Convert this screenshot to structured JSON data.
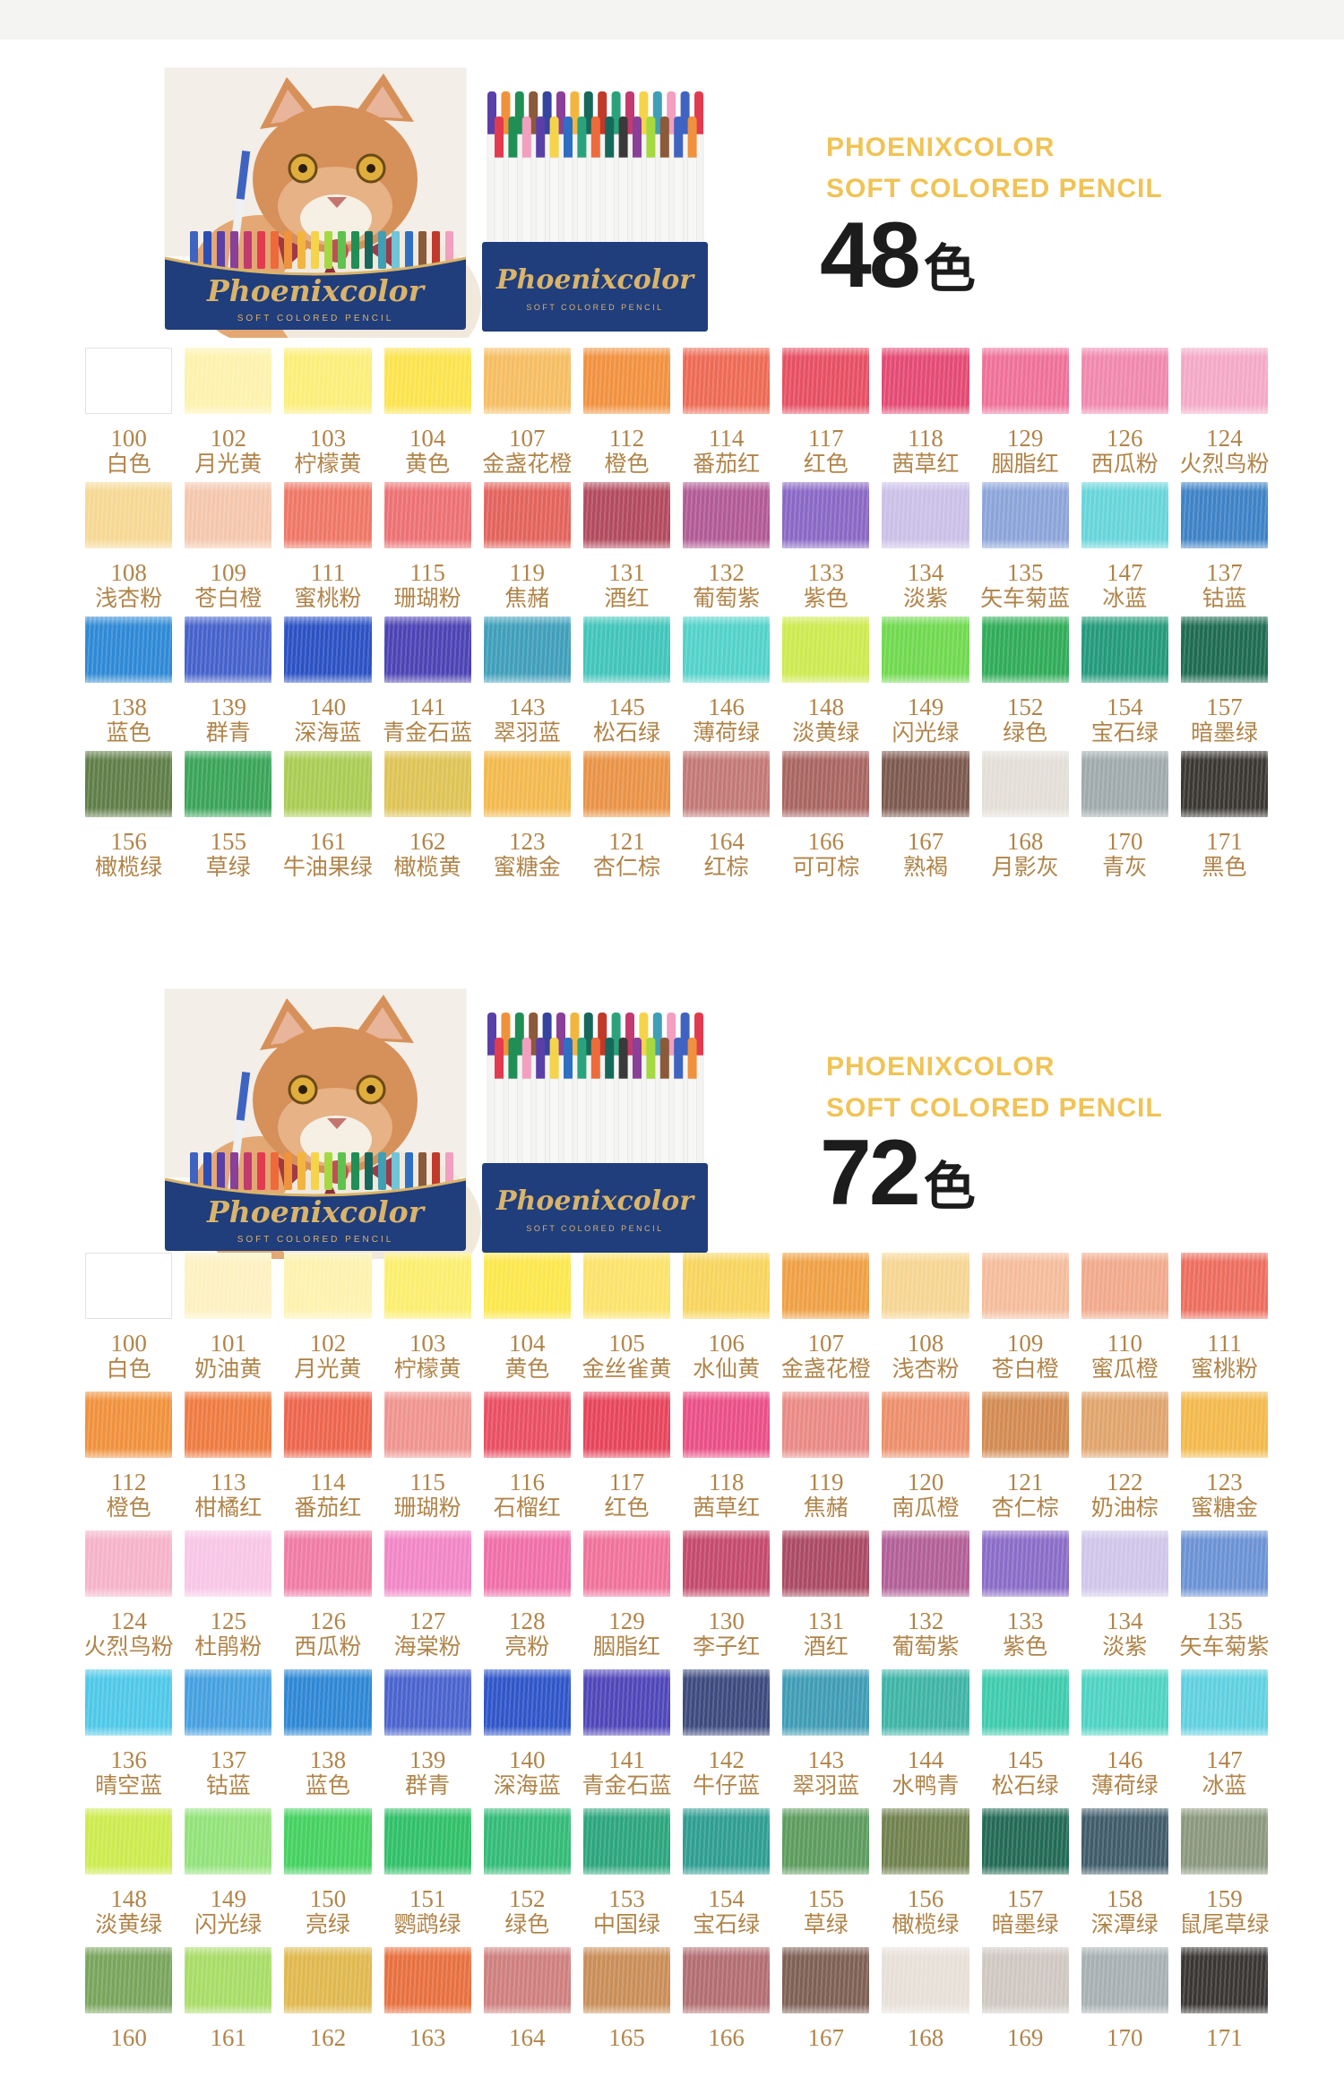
{
  "accent_colors": {
    "brand_yellow": "#f0c355",
    "label_brown": "#b08449",
    "box_navy": "#203d7c",
    "box_gold": "#d9b469"
  },
  "product_art": {
    "brand_script": "Phoenixcolor",
    "box_subtitle": "SOFT COLORED PENCIL",
    "navy": "#203d7c",
    "gold": "#d9b469",
    "cat_fur": "#d6905a",
    "cat_fur_light": "#e3a873",
    "bow_red": "#a03a48",
    "pencil_tips": [
      "#3f63c0",
      "#2b4db4",
      "#5a3fa8",
      "#8a3f98",
      "#c23b6e",
      "#e23b50",
      "#ee6a3a",
      "#f0913b",
      "#f2b63f",
      "#f5d44a",
      "#a5d93f",
      "#5fc24e",
      "#1f8f56",
      "#16695a",
      "#3f9fb5",
      "#6fc6d8",
      "#2e6fc4",
      "#8a5a3a",
      "#c0392b",
      "#f29fc0",
      "#3a3a3a",
      "#d84a7a",
      "#35449e",
      "#2aa37d"
    ]
  },
  "sections": [
    {
      "id": "sec48",
      "brand_line1": "PHOENIXCOLOR",
      "brand_line2": "SOFT COLORED PENCIL",
      "count_number": "48",
      "count_suffix": "色",
      "rows": [
        [
          {
            "num": "100",
            "name": "白色",
            "color": "#ffffff",
            "light": true
          },
          {
            "num": "102",
            "name": "月光黄",
            "color": "#fdf2ad"
          },
          {
            "num": "103",
            "name": "柠檬黄",
            "color": "#fbee79"
          },
          {
            "num": "104",
            "name": "黄色",
            "color": "#fbe34d"
          },
          {
            "num": "107",
            "name": "金盏花橙",
            "color": "#f6bd62"
          },
          {
            "num": "112",
            "name": "橙色",
            "color": "#f1913f"
          },
          {
            "num": "114",
            "name": "番茄红",
            "color": "#ed6a55"
          },
          {
            "num": "117",
            "name": "红色",
            "color": "#e64f63"
          },
          {
            "num": "118",
            "name": "茜草红",
            "color": "#e34a73"
          },
          {
            "num": "129",
            "name": "胭脂红",
            "color": "#ee7099"
          },
          {
            "num": "126",
            "name": "西瓜粉",
            "color": "#f088ae"
          },
          {
            "num": "124",
            "name": "火烈鸟粉",
            "color": "#f4a9c6"
          }
        ],
        [
          {
            "num": "108",
            "name": "浅杏粉",
            "color": "#f6d894"
          },
          {
            "num": "109",
            "name": "苍白橙",
            "color": "#f4c7ad"
          },
          {
            "num": "111",
            "name": "蜜桃粉",
            "color": "#ee7766"
          },
          {
            "num": "115",
            "name": "珊瑚粉",
            "color": "#ec7173"
          },
          {
            "num": "119",
            "name": "焦赭",
            "color": "#e2635c"
          },
          {
            "num": "131",
            "name": "酒红",
            "color": "#b24a5e"
          },
          {
            "num": "132",
            "name": "葡萄紫",
            "color": "#b15a95"
          },
          {
            "num": "133",
            "name": "紫色",
            "color": "#8968c5"
          },
          {
            "num": "134",
            "name": "淡紫",
            "color": "#cbc0e7"
          },
          {
            "num": "135",
            "name": "矢车菊蓝",
            "color": "#8ba4d9"
          },
          {
            "num": "147",
            "name": "冰蓝",
            "color": "#66d5da"
          },
          {
            "num": "137",
            "name": "钴蓝",
            "color": "#3e82c6"
          }
        ],
        [
          {
            "num": "138",
            "name": "蓝色",
            "color": "#2e89d5"
          },
          {
            "num": "139",
            "name": "群青",
            "color": "#4562cb"
          },
          {
            "num": "140",
            "name": "深海蓝",
            "color": "#2b51c3"
          },
          {
            "num": "141",
            "name": "青金石蓝",
            "color": "#4c43b4"
          },
          {
            "num": "143",
            "name": "翠羽蓝",
            "color": "#3f9fba"
          },
          {
            "num": "145",
            "name": "松石绿",
            "color": "#41c5ba"
          },
          {
            "num": "146",
            "name": "薄荷绿",
            "color": "#52d2c9"
          },
          {
            "num": "148",
            "name": "淡黄绿",
            "color": "#cdea4f"
          },
          {
            "num": "149",
            "name": "闪光绿",
            "color": "#70d94f"
          },
          {
            "num": "152",
            "name": "绿色",
            "color": "#30ac58"
          },
          {
            "num": "154",
            "name": "宝石绿",
            "color": "#239a7b"
          },
          {
            "num": "157",
            "name": "暗墨绿",
            "color": "#1e6b51"
          }
        ],
        [
          {
            "num": "156",
            "name": "橄榄绿",
            "color": "#5f7e48"
          },
          {
            "num": "155",
            "name": "草绿",
            "color": "#3aa458"
          },
          {
            "num": "161",
            "name": "牛油果绿",
            "color": "#a9cc53"
          },
          {
            "num": "162",
            "name": "橄榄黄",
            "color": "#dec355"
          },
          {
            "num": "123",
            "name": "蜜糖金",
            "color": "#f3b94e"
          },
          {
            "num": "121",
            "name": "杏仁棕",
            "color": "#e99346"
          },
          {
            "num": "164",
            "name": "红棕",
            "color": "#c27976"
          },
          {
            "num": "166",
            "name": "可可棕",
            "color": "#a96561"
          },
          {
            "num": "167",
            "name": "熟褐",
            "color": "#7c594e"
          },
          {
            "num": "168",
            "name": "月影灰",
            "color": "#e3ded7"
          },
          {
            "num": "170",
            "name": "青灰",
            "color": "#a0aaac"
          },
          {
            "num": "171",
            "name": "黑色",
            "color": "#3a3733"
          }
        ]
      ]
    },
    {
      "id": "sec72",
      "brand_line1": "PHOENIXCOLOR",
      "brand_line2": "SOFT COLORED PENCIL",
      "count_number": "72",
      "count_suffix": "色",
      "rows": [
        [
          {
            "num": "100",
            "name": "白色",
            "color": "#ffffff",
            "light": true
          },
          {
            "num": "101",
            "name": "奶油黄",
            "color": "#fdf1c1"
          },
          {
            "num": "102",
            "name": "月光黄",
            "color": "#fdf2ae"
          },
          {
            "num": "103",
            "name": "柠檬黄",
            "color": "#fbee6e"
          },
          {
            "num": "104",
            "name": "黄色",
            "color": "#fce74b"
          },
          {
            "num": "105",
            "name": "金丝雀黄",
            "color": "#fbe26a"
          },
          {
            "num": "106",
            "name": "水仙黄",
            "color": "#f8d45d"
          },
          {
            "num": "107",
            "name": "金盏花橙",
            "color": "#efa044"
          },
          {
            "num": "108",
            "name": "浅杏粉",
            "color": "#f6d593"
          },
          {
            "num": "109",
            "name": "苍白橙",
            "color": "#f4bc9c"
          },
          {
            "num": "110",
            "name": "蜜瓜橙",
            "color": "#f1a98c"
          },
          {
            "num": "111",
            "name": "蜜桃粉",
            "color": "#ec6d5e"
          }
        ],
        [
          {
            "num": "112",
            "name": "橙色",
            "color": "#f0913c"
          },
          {
            "num": "113",
            "name": "柑橘红",
            "color": "#ee7b41"
          },
          {
            "num": "114",
            "name": "番茄红",
            "color": "#ec654d"
          },
          {
            "num": "115",
            "name": "珊瑚粉",
            "color": "#ef948f"
          },
          {
            "num": "116",
            "name": "石榴红",
            "color": "#e84f63"
          },
          {
            "num": "117",
            "name": "红色",
            "color": "#e6455c"
          },
          {
            "num": "118",
            "name": "茜草红",
            "color": "#e94f86"
          },
          {
            "num": "119",
            "name": "焦赭",
            "color": "#e98a84"
          },
          {
            "num": "120",
            "name": "南瓜橙",
            "color": "#ec8f6a"
          },
          {
            "num": "121",
            "name": "杏仁棕",
            "color": "#d28b51"
          },
          {
            "num": "122",
            "name": "奶油棕",
            "color": "#e0a46d"
          },
          {
            "num": "123",
            "name": "蜜糖金",
            "color": "#f3b94b"
          }
        ],
        [
          {
            "num": "124",
            "name": "火烈鸟粉",
            "color": "#f5b3c9"
          },
          {
            "num": "125",
            "name": "杜鹃粉",
            "color": "#f8c6e6"
          },
          {
            "num": "126",
            "name": "西瓜粉",
            "color": "#ef7ba5"
          },
          {
            "num": "127",
            "name": "海棠粉",
            "color": "#f186c6"
          },
          {
            "num": "128",
            "name": "亮粉",
            "color": "#ef6fa8"
          },
          {
            "num": "129",
            "name": "胭脂红",
            "color": "#ef729b"
          },
          {
            "num": "130",
            "name": "李子红",
            "color": "#c44a6b"
          },
          {
            "num": "131",
            "name": "酒红",
            "color": "#aa4a63"
          },
          {
            "num": "132",
            "name": "葡萄紫",
            "color": "#b25f97"
          },
          {
            "num": "133",
            "name": "紫色",
            "color": "#8a6cc7"
          },
          {
            "num": "134",
            "name": "淡紫",
            "color": "#cfc6e9"
          },
          {
            "num": "135",
            "name": "矢车菊紫",
            "color": "#6b92d4"
          }
        ],
        [
          {
            "num": "136",
            "name": "晴空蓝",
            "color": "#4fc8e8"
          },
          {
            "num": "137",
            "name": "钴蓝",
            "color": "#45a0e0"
          },
          {
            "num": "138",
            "name": "蓝色",
            "color": "#2e87d4"
          },
          {
            "num": "139",
            "name": "群青",
            "color": "#4a63cd"
          },
          {
            "num": "140",
            "name": "深海蓝",
            "color": "#2f55c8"
          },
          {
            "num": "141",
            "name": "青金石蓝",
            "color": "#4f46b8"
          },
          {
            "num": "142",
            "name": "牛仔蓝",
            "color": "#3c4a7e"
          },
          {
            "num": "143",
            "name": "翠羽蓝",
            "color": "#3f9cb5"
          },
          {
            "num": "144",
            "name": "水鸭青",
            "color": "#3eb4a6"
          },
          {
            "num": "145",
            "name": "松石绿",
            "color": "#3ecbad"
          },
          {
            "num": "146",
            "name": "薄荷绿",
            "color": "#4ed3c2"
          },
          {
            "num": "147",
            "name": "冰蓝",
            "color": "#5fd0e0"
          }
        ],
        [
          {
            "num": "148",
            "name": "淡黄绿",
            "color": "#cdeb4e"
          },
          {
            "num": "149",
            "name": "闪光绿",
            "color": "#92e27a"
          },
          {
            "num": "150",
            "name": "亮绿",
            "color": "#44d160"
          },
          {
            "num": "151",
            "name": "鹦鹉绿",
            "color": "#30c068"
          },
          {
            "num": "152",
            "name": "绿色",
            "color": "#33bb77"
          },
          {
            "num": "153",
            "name": "中国绿",
            "color": "#2ca57d"
          },
          {
            "num": "154",
            "name": "宝石绿",
            "color": "#2f9d92"
          },
          {
            "num": "155",
            "name": "草绿",
            "color": "#5d9c5e"
          },
          {
            "num": "156",
            "name": "橄榄绿",
            "color": "#70814e"
          },
          {
            "num": "157",
            "name": "暗墨绿",
            "color": "#226a55"
          },
          {
            "num": "158",
            "name": "深潭绿",
            "color": "#405c6b"
          },
          {
            "num": "159",
            "name": "鼠尾草绿",
            "color": "#8b987f"
          }
        ],
        [
          {
            "num": "160",
            "name": "",
            "color": "#79a45c"
          },
          {
            "num": "161",
            "name": "",
            "color": "#a8dc66"
          },
          {
            "num": "162",
            "name": "",
            "color": "#e0b84e"
          },
          {
            "num": "163",
            "name": "",
            "color": "#e7703f"
          },
          {
            "num": "164",
            "name": "",
            "color": "#ce807e"
          },
          {
            "num": "165",
            "name": "",
            "color": "#c98e58"
          },
          {
            "num": "166",
            "name": "",
            "color": "#b26e72"
          },
          {
            "num": "167",
            "name": "",
            "color": "#7e6054"
          },
          {
            "num": "168",
            "name": "",
            "color": "#e7e0d8"
          },
          {
            "num": "169",
            "name": "",
            "color": "#cfc8c2"
          },
          {
            "num": "170",
            "name": "",
            "color": "#a7b0b2"
          },
          {
            "num": "171",
            "name": "",
            "color": "#393634"
          }
        ]
      ]
    }
  ]
}
